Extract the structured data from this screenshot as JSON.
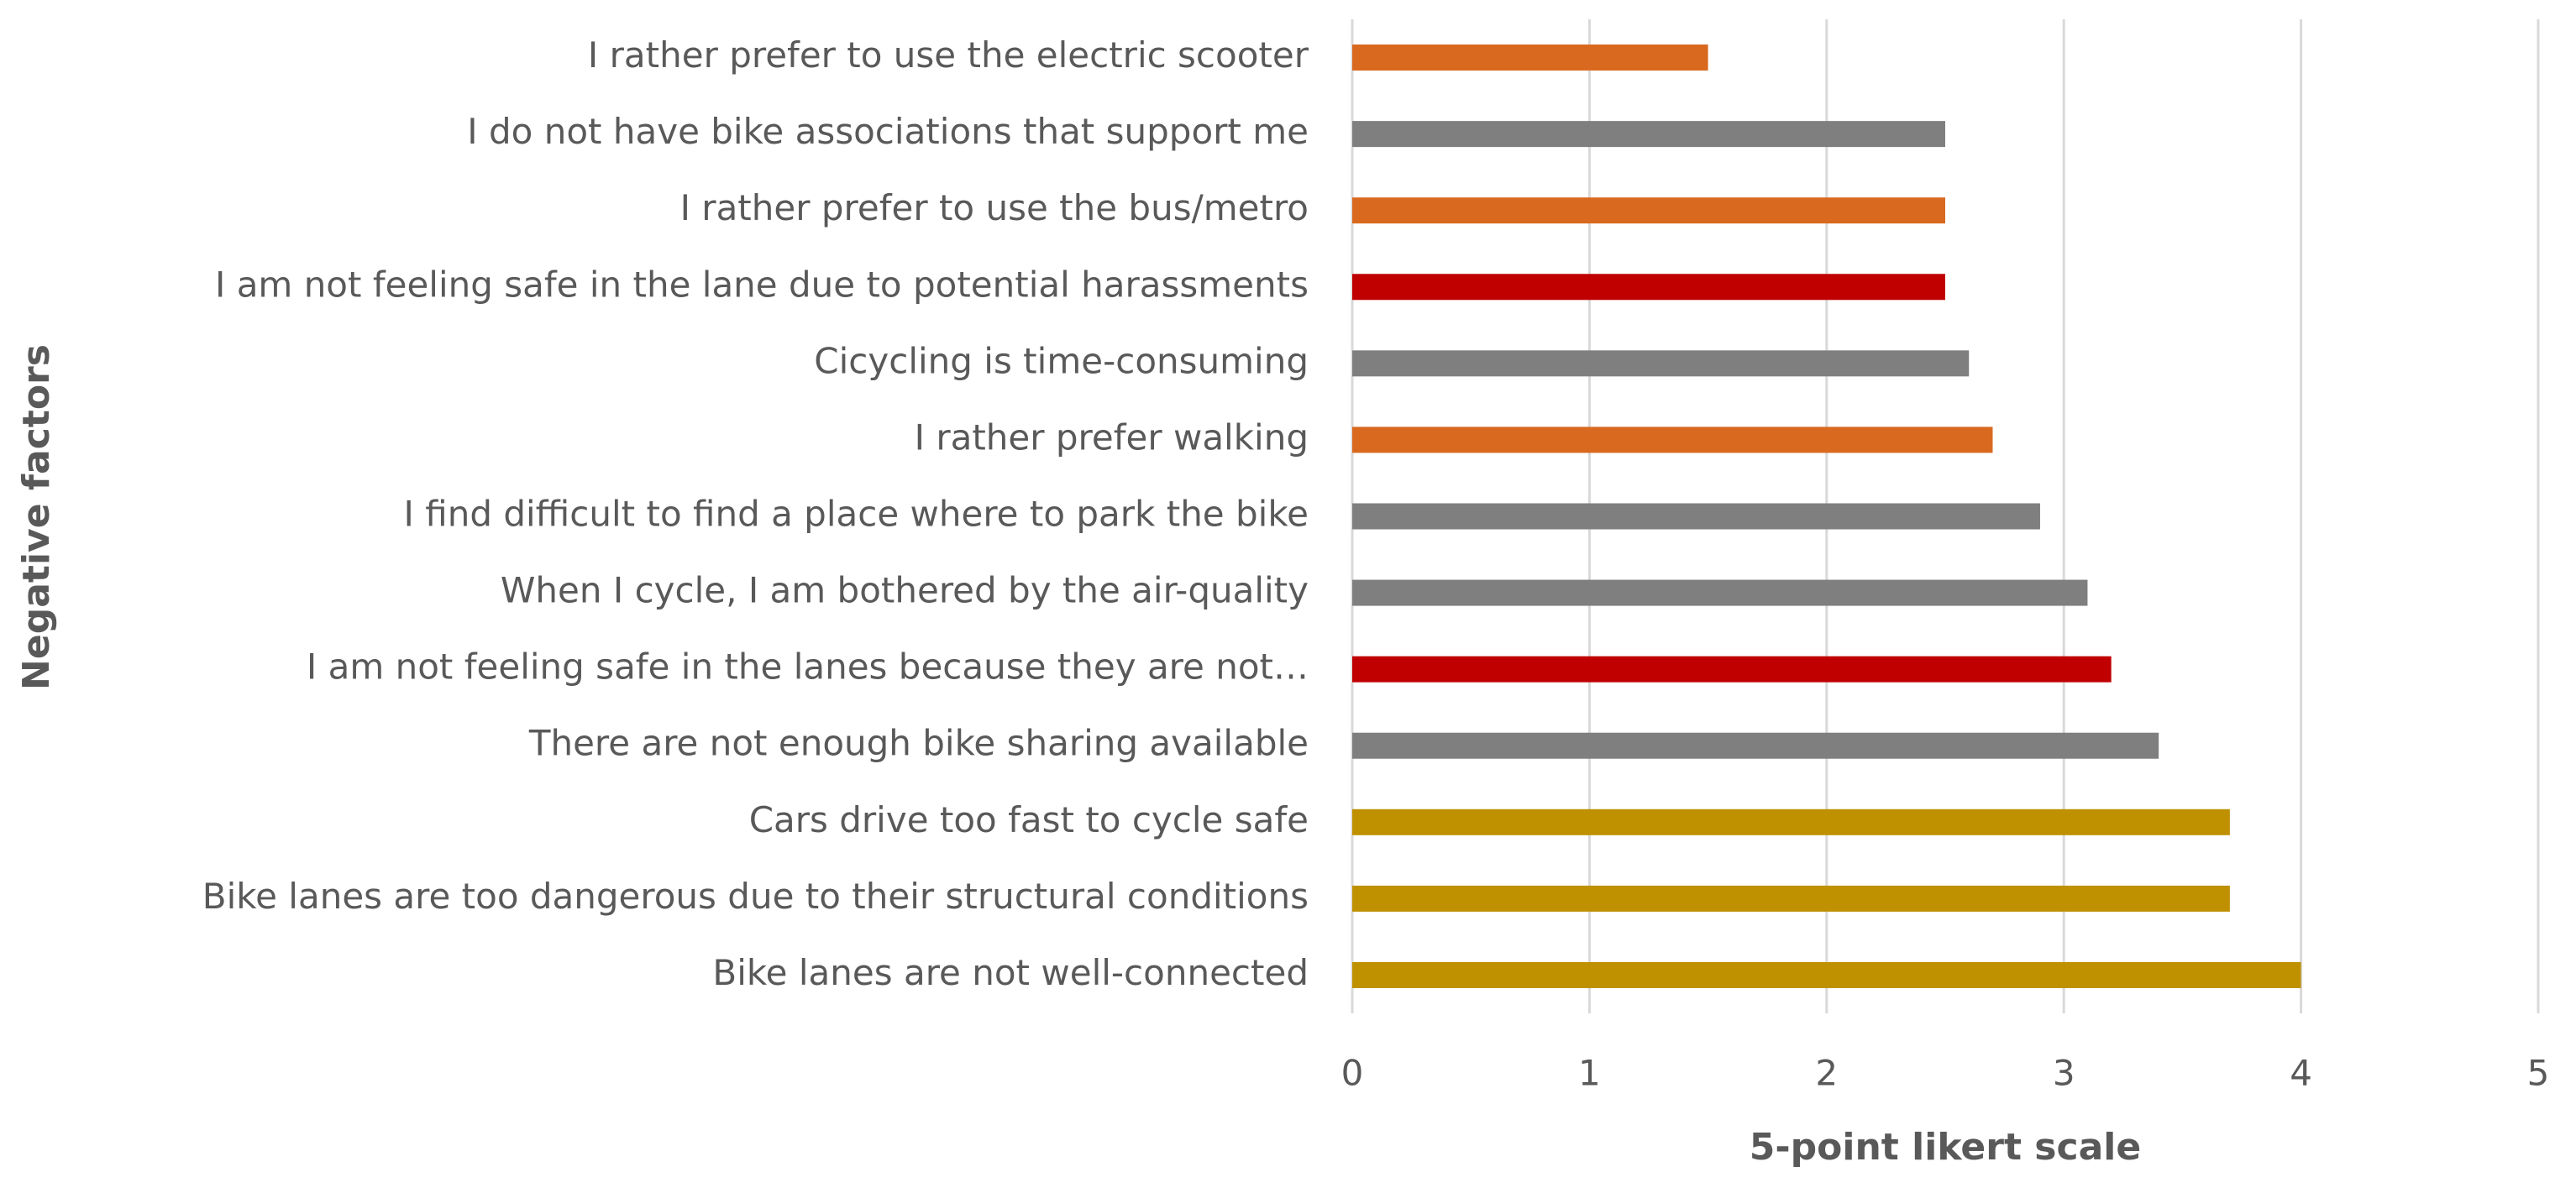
{
  "chart_data": {
    "type": "hbar",
    "x_label": "5-point likert scale",
    "y_label": "Negative factors",
    "categories": [
      "I rather prefer to use the electric scooter",
      "I do not have bike associations that support me",
      "I rather prefer to use the bus/metro",
      "I am not feeling safe in the lane due to potential harassments",
      "Cicycling is time-consuming",
      "I rather prefer walking",
      "I find difficult to find a place where to park the bike",
      "When I cycle, I am bothered by the air-quality",
      "I am not feeling safe in the lanes because they are not…",
      "There are not enough bike sharing available",
      "Cars drive too fast to cycle safe",
      "Bike lanes are too dangerous due to their structural conditions",
      "Bike lanes are not well-connected"
    ],
    "values": [
      1.5,
      2.5,
      2.5,
      2.5,
      2.6,
      2.7,
      2.9,
      3.1,
      3.2,
      3.4,
      3.7,
      3.7,
      4.0
    ],
    "colors": [
      "#d9691f",
      "#7f7f7f",
      "#d9691f",
      "#c00000",
      "#7f7f7f",
      "#d9691f",
      "#7f7f7f",
      "#7f7f7f",
      "#c00000",
      "#7f7f7f",
      "#bf9000",
      "#bf9000",
      "#bf9000"
    ],
    "xlim": [
      0,
      5
    ],
    "xticks": [
      0,
      1,
      2,
      3,
      4,
      5
    ],
    "grid": true
  }
}
